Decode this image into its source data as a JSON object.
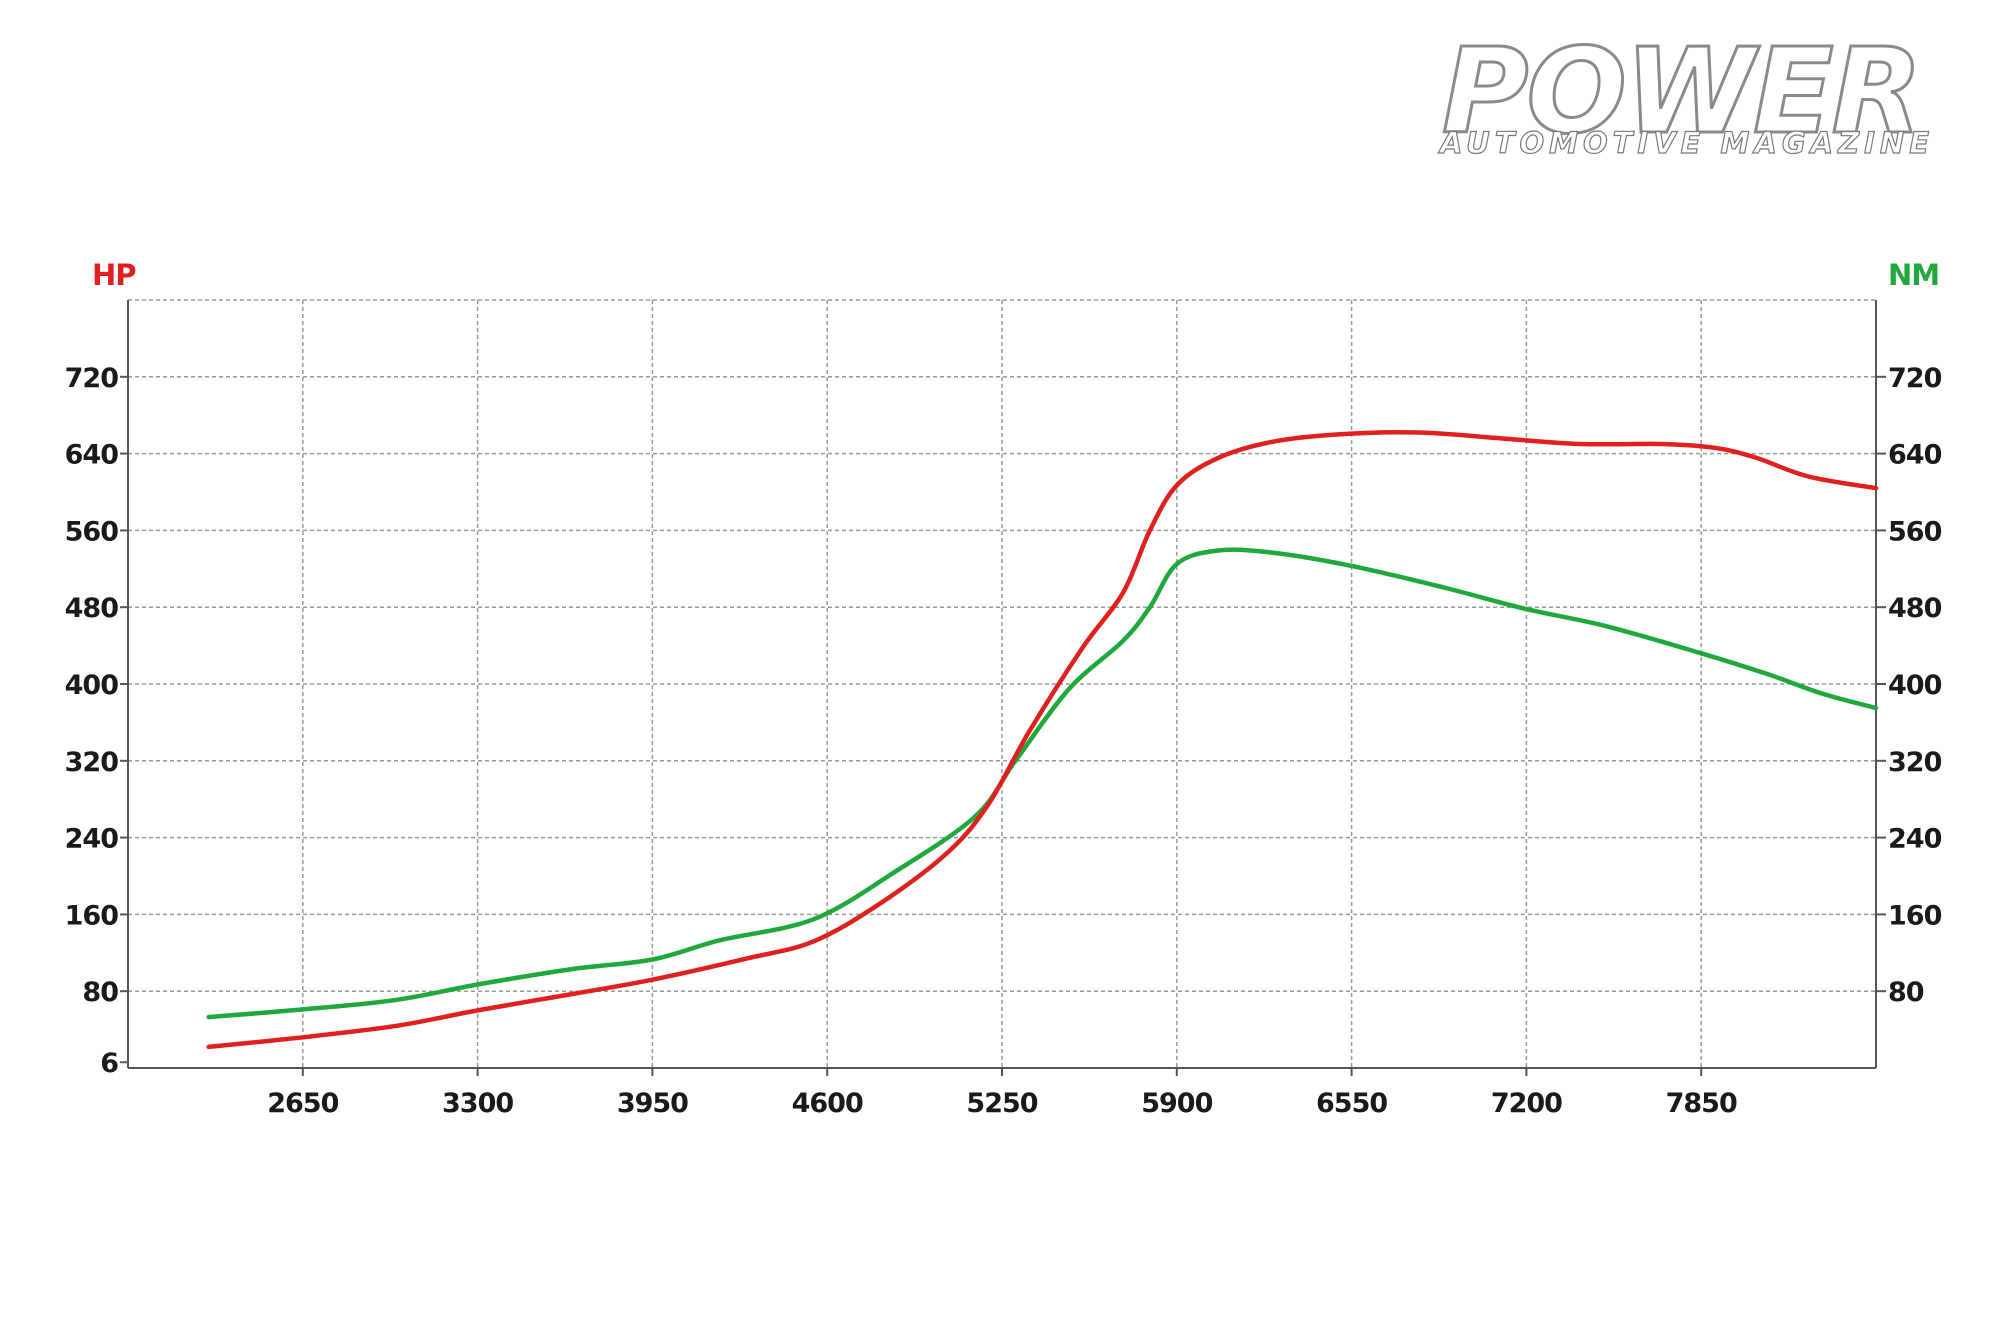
{
  "logo": {
    "main": "POWER",
    "sub": "AUTOMOTIVE MAGAZINE"
  },
  "colors": {
    "hp": "#e0201e",
    "nm": "#1fa83c",
    "grid": "#9a9a9a",
    "axis": "#555555",
    "text": "#1a1a1a"
  },
  "chart_data": {
    "type": "line",
    "xlabel": "",
    "x_ticks": [
      "2650",
      "3300",
      "3950",
      "4600",
      "5250",
      "5900",
      "6550",
      "7200",
      "7850"
    ],
    "xlim": [
      2000,
      8500
    ],
    "left_axis": {
      "label": "HP",
      "ticks": [
        "6",
        "80",
        "160",
        "240",
        "320",
        "400",
        "480",
        "560",
        "640",
        "720"
      ],
      "ylim": [
        0,
        800
      ]
    },
    "right_axis": {
      "label": "NM",
      "ticks": [
        "80",
        "160",
        "240",
        "320",
        "400",
        "480",
        "560",
        "640",
        "720"
      ],
      "ylim": [
        0,
        800
      ]
    },
    "grid": true,
    "series": [
      {
        "name": "HP",
        "axis": "left",
        "color": "#e0201e",
        "points": [
          [
            2300,
            22
          ],
          [
            2650,
            32
          ],
          [
            3000,
            44
          ],
          [
            3300,
            60
          ],
          [
            3650,
            77
          ],
          [
            3950,
            92
          ],
          [
            4300,
            114
          ],
          [
            4550,
            132
          ],
          [
            4800,
            172
          ],
          [
            5050,
            225
          ],
          [
            5200,
            275
          ],
          [
            5350,
            350
          ],
          [
            5550,
            438
          ],
          [
            5700,
            495
          ],
          [
            5800,
            560
          ],
          [
            5900,
            607
          ],
          [
            6050,
            635
          ],
          [
            6250,
            652
          ],
          [
            6500,
            660
          ],
          [
            6800,
            662
          ],
          [
            7100,
            656
          ],
          [
            7400,
            650
          ],
          [
            7700,
            650
          ],
          [
            7900,
            646
          ],
          [
            8050,
            636
          ],
          [
            8250,
            616
          ],
          [
            8500,
            604
          ]
        ]
      },
      {
        "name": "NM",
        "axis": "right",
        "color": "#1fa83c",
        "points": [
          [
            2300,
            53
          ],
          [
            2650,
            61
          ],
          [
            3000,
            71
          ],
          [
            3300,
            87
          ],
          [
            3650,
            103
          ],
          [
            3950,
            113
          ],
          [
            4200,
            133
          ],
          [
            4550,
            155
          ],
          [
            4850,
            204
          ],
          [
            5150,
            262
          ],
          [
            5300,
            320
          ],
          [
            5500,
            395
          ],
          [
            5700,
            445
          ],
          [
            5800,
            480
          ],
          [
            5900,
            525
          ],
          [
            6050,
            539
          ],
          [
            6250,
            537
          ],
          [
            6550,
            523
          ],
          [
            6900,
            500
          ],
          [
            7200,
            478
          ],
          [
            7500,
            460
          ],
          [
            7850,
            432
          ],
          [
            8100,
            410
          ],
          [
            8300,
            390
          ],
          [
            8500,
            375
          ]
        ]
      }
    ]
  }
}
